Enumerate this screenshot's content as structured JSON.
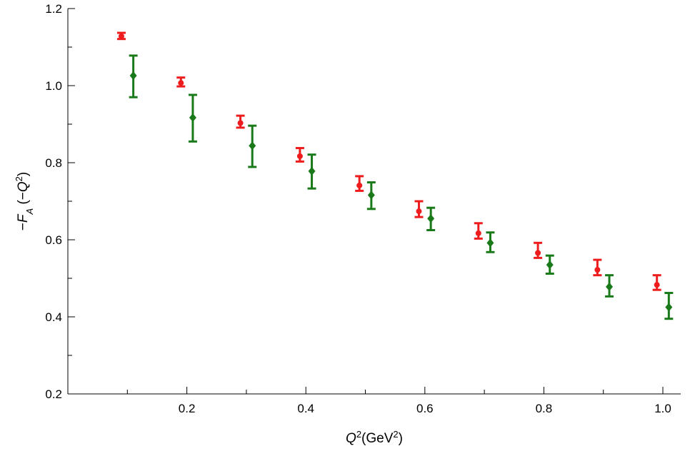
{
  "chart_data": {
    "type": "scatter",
    "xlabel": "Q²(GeV²)",
    "ylabel": "−F_A (−Q²)",
    "xlim": [
      0.0,
      1.03
    ],
    "ylim": [
      0.2,
      1.2
    ],
    "x_ticks": [
      0.2,
      0.4,
      0.6,
      0.8,
      1.0
    ],
    "x_tick_labels": [
      "0.2",
      "0.4",
      "0.6",
      "0.8",
      "1.0"
    ],
    "x_minor_ticks": [
      0.1,
      0.3,
      0.5,
      0.7,
      0.9
    ],
    "y_ticks": [
      0.2,
      0.4,
      0.6,
      0.8,
      1.0,
      1.2
    ],
    "y_tick_labels": [
      "0.2",
      "0.4",
      "0.6",
      "0.8",
      "1.0",
      "1.2"
    ],
    "y_minor_ticks": [
      0.3,
      0.5,
      0.7,
      0.9,
      1.1
    ],
    "grid": false,
    "series": [
      {
        "color": "#ee1c1c",
        "marker": "circle",
        "points": [
          {
            "x": 0.09,
            "y": 1.128,
            "lo": 1.121,
            "hi": 1.137
          },
          {
            "x": 0.19,
            "y": 1.007,
            "lo": 0.998,
            "hi": 1.021
          },
          {
            "x": 0.29,
            "y": 0.903,
            "lo": 0.891,
            "hi": 0.922
          },
          {
            "x": 0.39,
            "y": 0.817,
            "lo": 0.803,
            "hi": 0.838
          },
          {
            "x": 0.49,
            "y": 0.741,
            "lo": 0.727,
            "hi": 0.765
          },
          {
            "x": 0.59,
            "y": 0.674,
            "lo": 0.659,
            "hi": 0.7
          },
          {
            "x": 0.69,
            "y": 0.617,
            "lo": 0.603,
            "hi": 0.643
          },
          {
            "x": 0.79,
            "y": 0.566,
            "lo": 0.553,
            "hi": 0.592
          },
          {
            "x": 0.89,
            "y": 0.522,
            "lo": 0.508,
            "hi": 0.548
          },
          {
            "x": 0.99,
            "y": 0.483,
            "lo": 0.47,
            "hi": 0.508
          }
        ]
      },
      {
        "color": "#1a7a1a",
        "marker": "diamond",
        "points": [
          {
            "x": 0.11,
            "y": 1.026,
            "lo": 0.97,
            "hi": 1.078
          },
          {
            "x": 0.21,
            "y": 0.917,
            "lo": 0.855,
            "hi": 0.976
          },
          {
            "x": 0.31,
            "y": 0.844,
            "lo": 0.789,
            "hi": 0.896
          },
          {
            "x": 0.41,
            "y": 0.778,
            "lo": 0.733,
            "hi": 0.821
          },
          {
            "x": 0.51,
            "y": 0.716,
            "lo": 0.68,
            "hi": 0.749
          },
          {
            "x": 0.61,
            "y": 0.655,
            "lo": 0.625,
            "hi": 0.683
          },
          {
            "x": 0.71,
            "y": 0.592,
            "lo": 0.568,
            "hi": 0.619
          },
          {
            "x": 0.81,
            "y": 0.535,
            "lo": 0.512,
            "hi": 0.559
          },
          {
            "x": 0.91,
            "y": 0.478,
            "lo": 0.453,
            "hi": 0.508
          },
          {
            "x": 1.01,
            "y": 0.425,
            "lo": 0.395,
            "hi": 0.462
          }
        ]
      }
    ]
  }
}
